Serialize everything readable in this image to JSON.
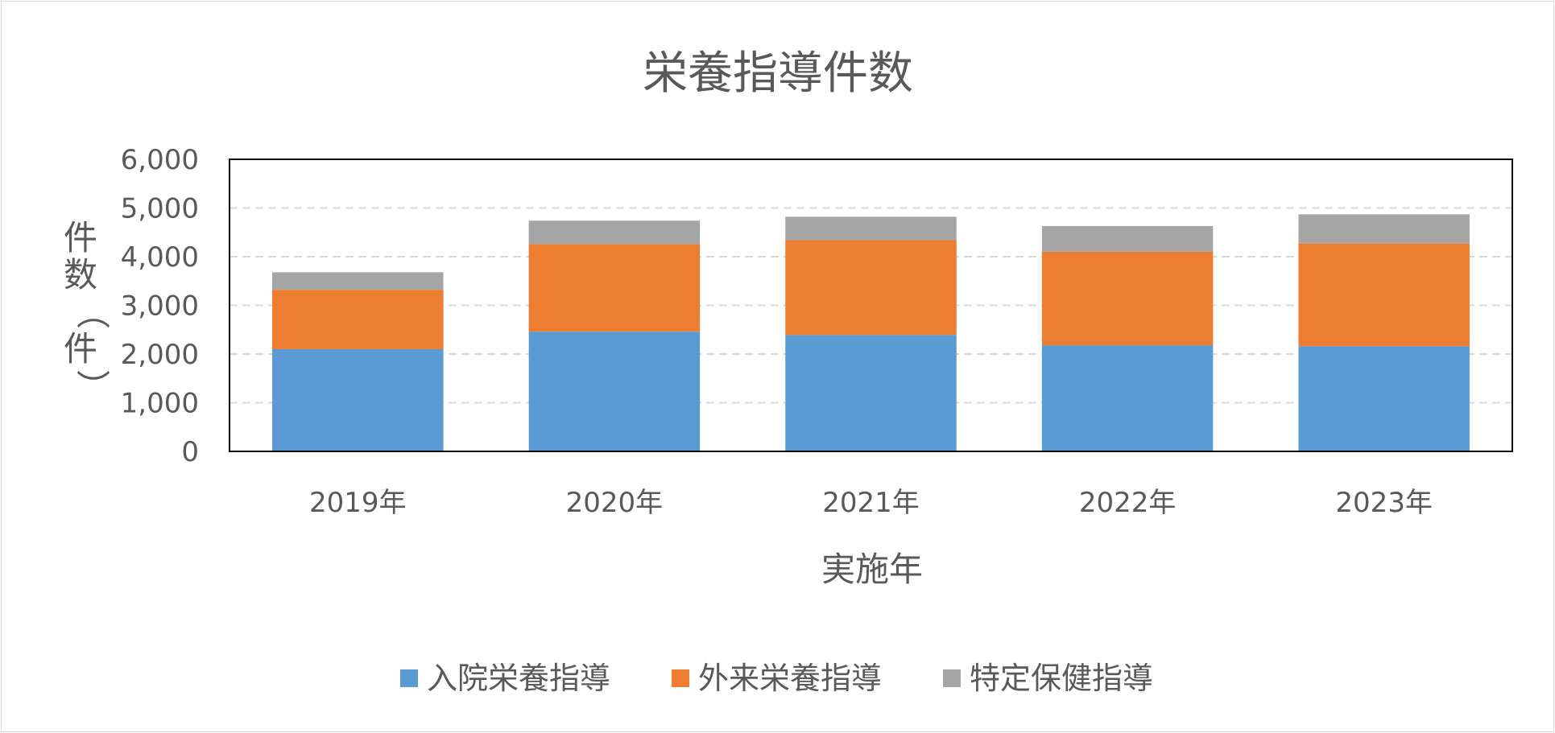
{
  "chart_data": {
    "type": "bar",
    "stacked": true,
    "title": "栄養指導件数",
    "xlabel": "実施年",
    "ylabel": "件数（件）",
    "categories": [
      "2019年",
      "2020年",
      "2021年",
      "2022年",
      "2023年"
    ],
    "series": [
      {
        "name": "入院栄養指導",
        "color": "#5b9bd5",
        "values": [
          2100,
          2460,
          2390,
          2180,
          2160
        ]
      },
      {
        "name": "外来栄養指導",
        "color": "#ed7d31",
        "values": [
          1220,
          1800,
          1950,
          1920,
          2110
        ]
      },
      {
        "name": "特定保健指導",
        "color": "#a5a5a5",
        "values": [
          360,
          480,
          480,
          530,
          600
        ]
      }
    ],
    "ylim": [
      0,
      6000
    ],
    "yticks": [
      "0",
      "1,000",
      "2,000",
      "3,000",
      "4,000",
      "5,000",
      "6,000"
    ],
    "grid": true,
    "legend_position": "bottom"
  }
}
